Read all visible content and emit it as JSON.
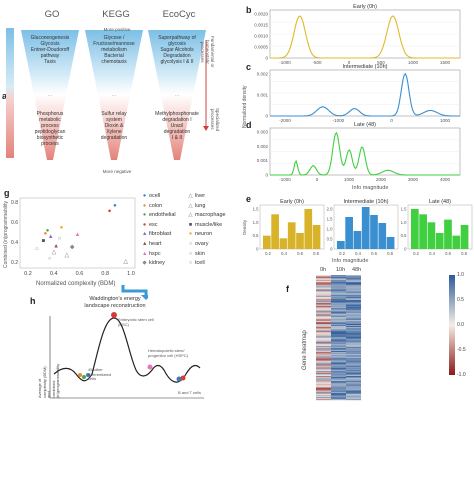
{
  "panels": {
    "a": "a",
    "b": "b",
    "c": "c",
    "d": "d",
    "e": "e",
    "f": "f",
    "g": "g",
    "h": "h"
  },
  "funnel": {
    "columns": [
      {
        "title": "GO",
        "top_terms": "Gluconeogenesis\nGlycosis\nEntner-Doudoroff\npathway\nTaxis",
        "bottom_terms": "Phosphorus\nmetabolic\nprocess\npeptidoglycan\nbiosynthetic\nprocess"
      },
      {
        "title": "KEGG",
        "top_terms": "Glycose /\nFructose/mannose\nmetabolism\nBacterial\nchemotaxis",
        "bottom_terms": "Sulfur relay\nsystem\nDioxin &\nXylene\ndegradation"
      },
      {
        "title": "EcoCyc",
        "top_terms": "Superpathway of\nglycosis\nSugar Alcohols\nDegradation\nglycolysis I & II",
        "bottom_terms": "Methylphosphonate\ndegradation I\nUracil\ndegradation\nI & II"
      }
    ],
    "more_positive": "More positive",
    "more_negative": "More negative",
    "fundamental": "Fundamental or\nhomeostatic\nprocesses",
    "specialized": "Specialized\nprocesses",
    "ellipsis": "..."
  },
  "density": {
    "ylabel": "Normalized density",
    "xlabel": "Info magnitude",
    "early": {
      "title": "Early (0h)",
      "color": "#e0b92a",
      "xlim": [
        -1300,
        1700
      ],
      "ylim": [
        0,
        0.0024
      ],
      "yticks": [
        "0.0020",
        "0.0015",
        "0.0010",
        "0.0005",
        "0"
      ],
      "xticks": [
        "-1000",
        "-500",
        "0",
        "500",
        "1000",
        "1500"
      ]
    },
    "intermediate": {
      "title": "Intermediate (10h)",
      "color": "#3a8fd0",
      "xlim": [
        -2500,
        2000
      ],
      "ylim": [
        0,
        0.0025
      ],
      "yticks": [
        "0.002",
        "0.001",
        "0"
      ],
      "xticks": [
        "-2000",
        "-1000",
        "0",
        "1000"
      ]
    },
    "late": {
      "title": "Late (48)",
      "color": "#3fcf3f",
      "xlim": [
        -2100,
        4500
      ],
      "ylim": [
        0,
        0.003
      ],
      "yticks": [
        "0.003",
        "0.002",
        "0.001",
        "0"
      ],
      "xticks": [
        "-1000",
        "0",
        "1000",
        "2000",
        "3000",
        "4000"
      ]
    }
  },
  "histograms": {
    "ylabel": "Density",
    "xlabel": "Info magnitude",
    "xticks": [
      "0.2",
      "0.4",
      "0.6",
      "0.8"
    ],
    "panels": [
      {
        "title": "Early (0h)",
        "color": "#d8b32a",
        "yticks": [
          "1.5",
          "1.0",
          "0.5",
          "0"
        ],
        "values": [
          0.5,
          1.3,
          0.4,
          1.0,
          0.6,
          1.5,
          0.9
        ]
      },
      {
        "title": "Intermediate (10h)",
        "color": "#3a8fd0",
        "yticks": [
          "2.0",
          "1.5",
          "1.0",
          "0.5",
          "0"
        ],
        "values": [
          0.4,
          1.6,
          0.9,
          2.1,
          1.7,
          1.3,
          0.6
        ]
      },
      {
        "title": "Late (48)",
        "color": "#3fcf3f",
        "yticks": [
          "1.5",
          "1.0",
          "0.5",
          "0"
        ],
        "values": [
          1.5,
          1.3,
          1.0,
          0.6,
          1.1,
          0.5,
          0.9
        ]
      }
    ]
  },
  "scatter": {
    "xlabel": "Normalized complexity (BDM)",
    "ylabel": "Combined (in)programmability",
    "xticks": [
      "0.2",
      "0.4",
      "0.6",
      "0.8",
      "1.0"
    ],
    "yticks": [
      "0.8",
      "0.6",
      "0.4",
      "0.2"
    ],
    "legend": [
      {
        "name": "ocell",
        "marker": "●",
        "color": "#3a7ec0"
      },
      {
        "name": "colon",
        "marker": "●",
        "color": "#f08a28"
      },
      {
        "name": "endothelial",
        "marker": "●",
        "color": "#49a84c"
      },
      {
        "name": "esc",
        "marker": "●",
        "color": "#d83a3a"
      },
      {
        "name": "fibroblast",
        "marker": "▲",
        "color": "#9467bd"
      },
      {
        "name": "heart",
        "marker": "▲",
        "color": "#8c564b"
      },
      {
        "name": "hspc",
        "marker": "▲",
        "color": "#e377c2"
      },
      {
        "name": "kidney",
        "marker": "◆",
        "color": "#888888"
      },
      {
        "name": "liver",
        "marker": "△",
        "color": "#777777"
      },
      {
        "name": "lung",
        "marker": "△",
        "color": "#777777"
      },
      {
        "name": "macrophage",
        "marker": "△",
        "color": "#777777"
      },
      {
        "name": "muscle/like",
        "marker": "■",
        "color": "#555555"
      },
      {
        "name": "neuron",
        "marker": "●",
        "color": "#f5a623"
      },
      {
        "name": "ovary",
        "marker": "○",
        "color": "#888888"
      },
      {
        "name": "skin",
        "marker": "○",
        "color": "#888888"
      },
      {
        "name": "tcell",
        "marker": "○",
        "color": "#888888"
      }
    ]
  },
  "landscape": {
    "title": "Waddington's energy\nlandscape reconstruction",
    "ylabel": "Average of complexity (BDM) and\ncombined (in)programmability",
    "esc_label": "Embryonic stem cell\n(ESC)",
    "hspc_label": "Hematopoietic stem/\nprogenitor cell (HSPC)",
    "diff_label": "45 other\ndifferentiated\ncells",
    "btcell_label": "B and T cells"
  },
  "heatmap": {
    "ylabel": "Gene heatmap",
    "columns": [
      "0h",
      "10h",
      "48h"
    ],
    "scale_ticks": [
      "1.0",
      "0.5",
      "0.0",
      "-0.5",
      "-1.0"
    ]
  }
}
